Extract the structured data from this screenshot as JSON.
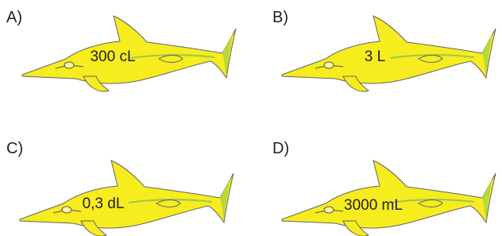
{
  "options": [
    {
      "letter": "A)",
      "label": "300 cL"
    },
    {
      "letter": "B)",
      "label": "3 L"
    },
    {
      "letter": "C)",
      "label": "0,3 dL"
    },
    {
      "letter": "D)",
      "label": "3000 mL"
    }
  ]
}
